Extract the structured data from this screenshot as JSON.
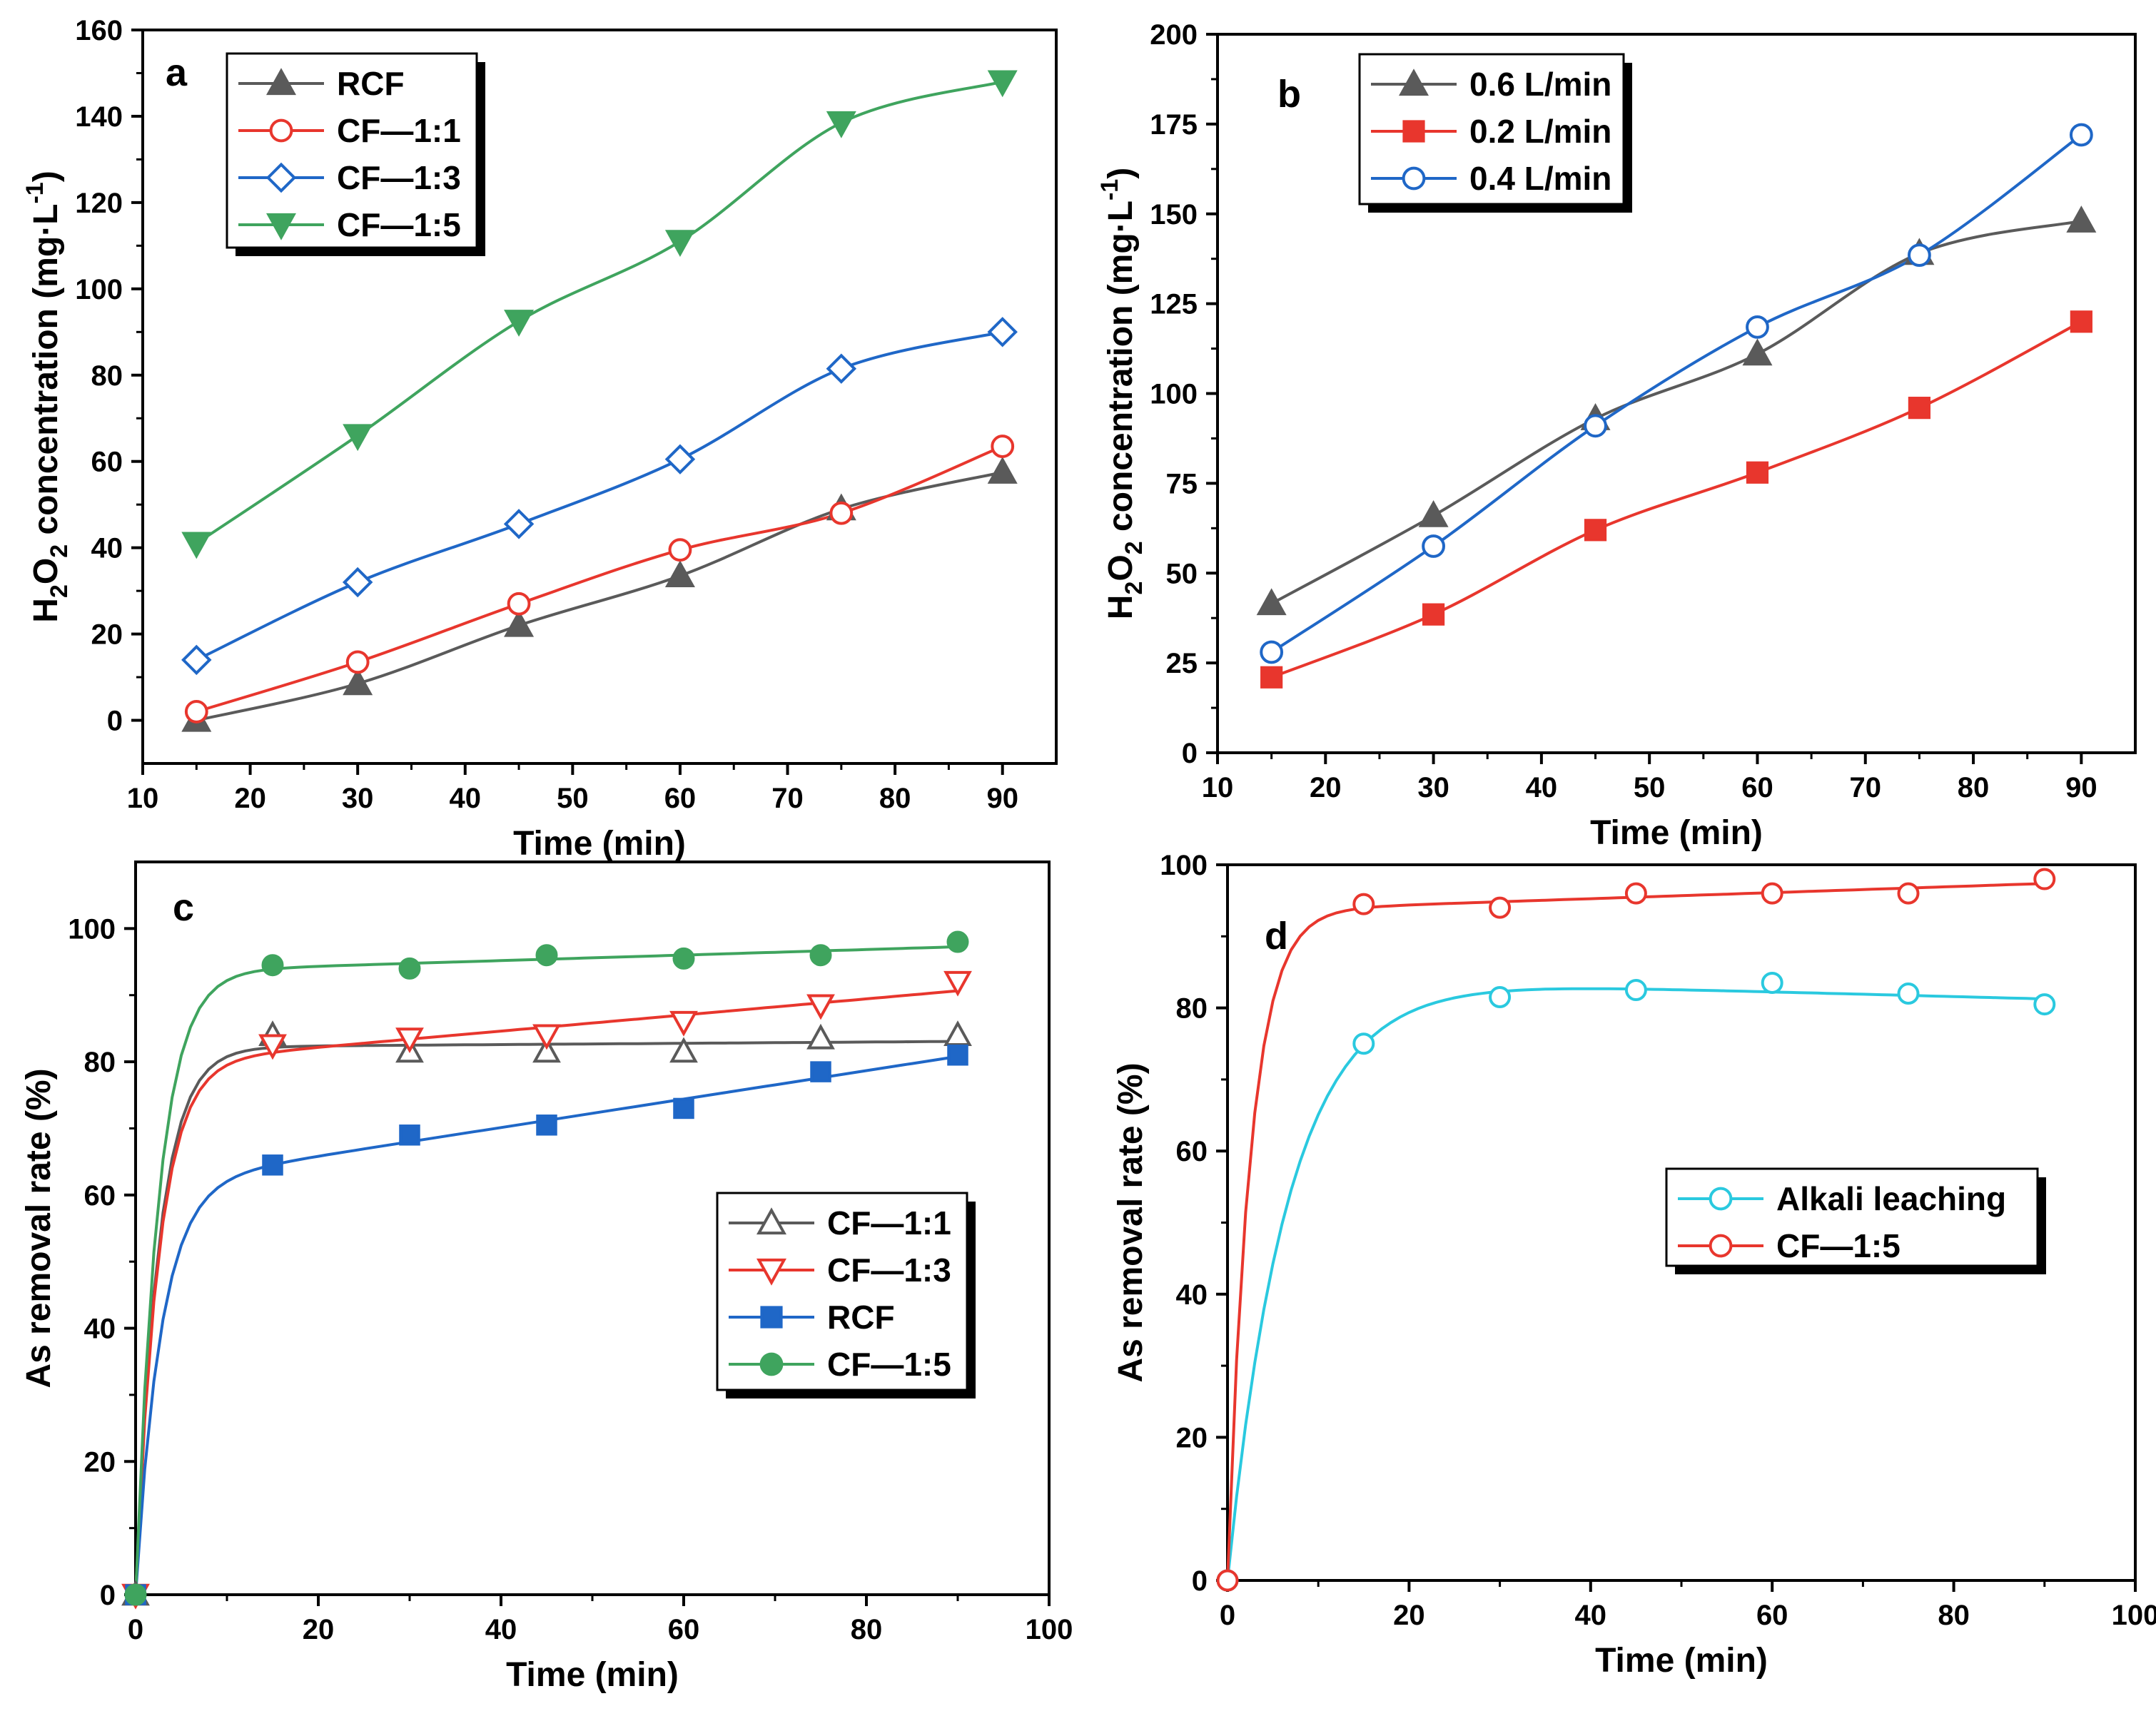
{
  "colors": {
    "gray": "#5a5a5a",
    "red": "#e8362d",
    "blue": "#1f67c7",
    "green": "#3fa45e",
    "cyan": "#2ac9df",
    "axis": "#000000"
  },
  "chart_data": [
    {
      "id": "a",
      "type": "line",
      "letter": "a",
      "xlabel": "Time (min)",
      "ylabel_parts": [
        "H",
        "2",
        "O",
        "2",
        " concentration (mg·L",
        "-1",
        ")"
      ],
      "xlim": [
        10,
        95
      ],
      "ylim": [
        -10,
        160
      ],
      "xticks": [
        10,
        20,
        30,
        40,
        50,
        60,
        70,
        80,
        90
      ],
      "yticks": [
        0,
        20,
        40,
        60,
        80,
        100,
        120,
        140,
        160
      ],
      "x": [
        15,
        30,
        45,
        60,
        75,
        90
      ],
      "series": [
        {
          "name": "RCF",
          "color": "gray",
          "marker": "triangle-up",
          "filled": true,
          "values": [
            0,
            8.5,
            22,
            33.5,
            49,
            57.5
          ]
        },
        {
          "name": "CF—1:1",
          "color": "red",
          "marker": "circle",
          "filled": false,
          "values": [
            2,
            13.5,
            27,
            39.5,
            48,
            63.5
          ]
        },
        {
          "name": "CF—1:3",
          "color": "blue",
          "marker": "diamond",
          "filled": false,
          "values": [
            14,
            32,
            45.5,
            60.5,
            81.5,
            90
          ]
        },
        {
          "name": "CF—1:5",
          "color": "green",
          "marker": "triangle-down",
          "filled": true,
          "values": [
            41,
            66,
            92.5,
            111,
            138.5,
            148
          ]
        }
      ],
      "legend": "top-left"
    },
    {
      "id": "b",
      "type": "line",
      "letter": "b",
      "xlabel": "Time (min)",
      "ylabel_parts": [
        "H",
        "2",
        "O",
        "2",
        " concentration (mg·L",
        "-1",
        ")"
      ],
      "xlim": [
        10,
        95
      ],
      "ylim": [
        0,
        200
      ],
      "xticks": [
        10,
        20,
        30,
        40,
        50,
        60,
        70,
        80,
        90
      ],
      "yticks": [
        0,
        25,
        50,
        75,
        100,
        125,
        150,
        175,
        200
      ],
      "x": [
        15,
        30,
        45,
        60,
        75,
        90
      ],
      "series": [
        {
          "name": "0.6 L/min",
          "color": "gray",
          "marker": "triangle-up",
          "filled": true,
          "values": [
            41.5,
            66,
            93,
            111,
            139,
            148
          ]
        },
        {
          "name": "0.2 L/min",
          "color": "red",
          "marker": "square",
          "filled": true,
          "values": [
            21,
            38.5,
            62,
            78,
            96,
            120
          ]
        },
        {
          "name": "0.4 L/min",
          "color": "blue",
          "marker": "circle",
          "filled": false,
          "values": [
            28,
            57.5,
            91,
            118.5,
            138.5,
            172
          ]
        }
      ],
      "legend": "top-left"
    },
    {
      "id": "c",
      "type": "scatter",
      "letter": "c",
      "xlabel": "Time (min)",
      "ylabel_parts": [
        "As removal rate (%)"
      ],
      "xlim": [
        0,
        100
      ],
      "ylim": [
        0,
        110
      ],
      "xticks": [
        0,
        20,
        40,
        60,
        80,
        100
      ],
      "yticks": [
        0,
        20,
        40,
        60,
        80,
        100
      ],
      "x": [
        0,
        15,
        30,
        45,
        60,
        75,
        90
      ],
      "series": [
        {
          "name": "CF—1:1",
          "color": "gray",
          "marker": "triangle-up",
          "filled": false,
          "values": [
            0,
            84,
            81.5,
            81.5,
            81.5,
            83.5,
            84
          ]
        },
        {
          "name": "CF—1:3",
          "color": "red",
          "marker": "triangle-down",
          "filled": false,
          "values": [
            0,
            82.5,
            83.5,
            84,
            86,
            88.5,
            92
          ]
        },
        {
          "name": "RCF",
          "color": "blue",
          "marker": "square",
          "filled": true,
          "values": [
            0,
            64.5,
            69,
            70.5,
            73,
            78.5,
            81
          ]
        },
        {
          "name": "CF—1:5",
          "color": "green",
          "marker": "circle",
          "filled": true,
          "values": [
            0,
            94.5,
            94,
            96,
            95.5,
            96,
            98
          ]
        }
      ],
      "legend": "middle-right"
    },
    {
      "id": "d",
      "type": "scatter",
      "letter": "d",
      "xlabel": "Time (min)",
      "ylabel_parts": [
        "As removal rate (%)"
      ],
      "xlim": [
        0,
        100
      ],
      "ylim": [
        0,
        100
      ],
      "xticks": [
        0,
        20,
        40,
        60,
        80,
        100
      ],
      "yticks": [
        0,
        20,
        40,
        60,
        80,
        100
      ],
      "x": [
        0,
        15,
        30,
        45,
        60,
        75,
        90
      ],
      "series": [
        {
          "name": "Alkali leaching",
          "color": "cyan",
          "marker": "circle",
          "filled": false,
          "values": [
            0,
            75,
            81.5,
            82.5,
            83.5,
            82,
            80.5
          ]
        },
        {
          "name": "CF—1:5",
          "color": "red",
          "marker": "circle",
          "filled": false,
          "values": [
            0,
            94.5,
            94,
            96,
            96,
            96,
            98
          ]
        }
      ],
      "legend": "middle-right"
    }
  ]
}
